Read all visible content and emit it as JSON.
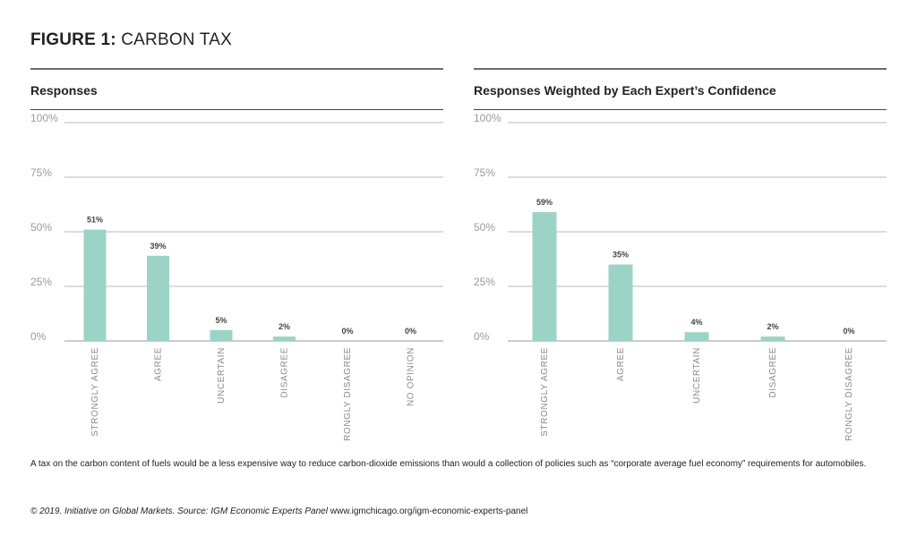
{
  "figure": {
    "title_prefix": "FIGURE 1:",
    "title_rest": " CARBON TAX"
  },
  "caption": "A tax on the carbon content of fuels would be a less expensive way to reduce carbon-dioxide emissions than would a collection of policies such as “corporate average fuel economy” requirements for automobiles.",
  "source": {
    "italic": "© 2019. Initiative on Global Markets. Source: IGM Economic Experts Panel",
    "url": " www.igmchicago.org/igm-economic-experts-panel"
  },
  "chart_data": [
    {
      "type": "bar",
      "title": "Responses",
      "categories": [
        "STRONGLY AGREE",
        "AGREE",
        "UNCERTAIN",
        "DISAGREE",
        "STRONGLY DISAGREE",
        "NO OPINION"
      ],
      "values": [
        51,
        39,
        5,
        2,
        0,
        0
      ],
      "data_labels": [
        "51%",
        "39%",
        "5%",
        "2%",
        "0%",
        "0%"
      ],
      "yticks": [
        "0%",
        "25%",
        "50%",
        "75%",
        "100%"
      ],
      "ylim": [
        0,
        100
      ],
      "grid": true,
      "bar_color": "#9bd4c6"
    },
    {
      "type": "bar",
      "title": "Responses Weighted by Each Expert’s Confidence",
      "categories": [
        "STRONGLY AGREE",
        "AGREE",
        "UNCERTAIN",
        "DISAGREE",
        "STRONGLY DISAGREE"
      ],
      "values": [
        59,
        35,
        4,
        2,
        0
      ],
      "data_labels": [
        "59%",
        "35%",
        "4%",
        "2%",
        "0%"
      ],
      "yticks": [
        "0%",
        "25%",
        "50%",
        "75%",
        "100%"
      ],
      "ylim": [
        0,
        100
      ],
      "grid": true,
      "bar_color": "#9bd4c6"
    }
  ]
}
